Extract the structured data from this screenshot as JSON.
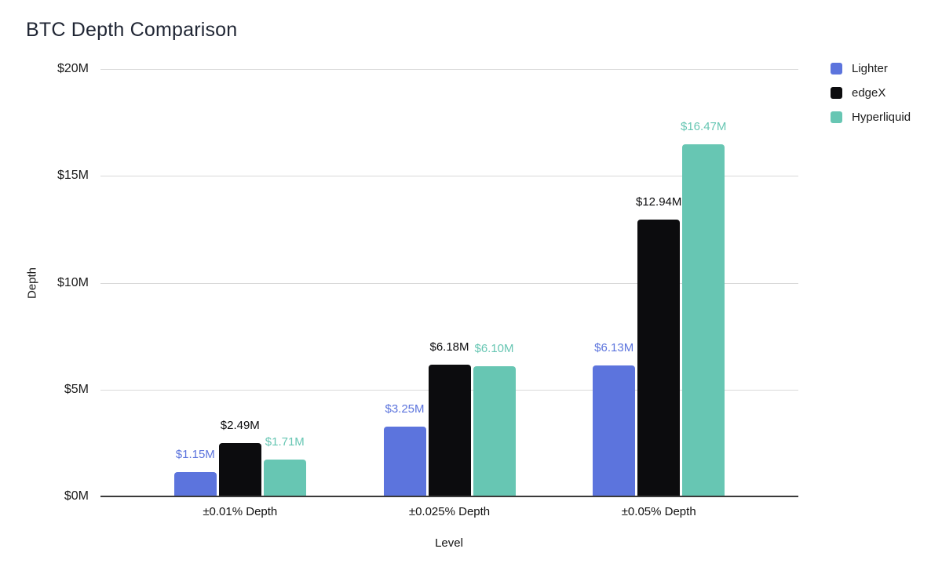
{
  "title": "BTC Depth Comparison",
  "legend": {
    "position": "right",
    "items": [
      {
        "label": "Lighter",
        "color": "#5c74dd"
      },
      {
        "label": "edgeX",
        "color": "#0c0c0e"
      },
      {
        "label": "Hyperliquid",
        "color": "#67c6b3"
      }
    ]
  },
  "chart_data": {
    "type": "bar",
    "title": "BTC Depth Comparison",
    "xlabel": "Level",
    "ylabel": "Depth",
    "categories": [
      "±0.01% Depth",
      "±0.025% Depth",
      "±0.05% Depth"
    ],
    "series": [
      {
        "name": "Lighter",
        "color": "#5c74dd",
        "values": [
          1.15,
          3.25,
          6.13
        ],
        "labels": [
          "$1.15M",
          "$3.25M",
          "$6.13M"
        ]
      },
      {
        "name": "edgeX",
        "color": "#0c0c0e",
        "values": [
          2.49,
          6.18,
          12.94
        ],
        "labels": [
          "$2.49M",
          "$6.18M",
          "$12.94M"
        ]
      },
      {
        "name": "Hyperliquid",
        "color": "#67c6b3",
        "values": [
          1.71,
          6.1,
          16.47
        ],
        "labels": [
          "$1.71M",
          "$6.10M",
          "$16.47M"
        ]
      }
    ],
    "ylim": [
      0,
      20
    ],
    "yticks": [
      {
        "value": 0,
        "label": "$0M"
      },
      {
        "value": 5,
        "label": "$5M"
      },
      {
        "value": 10,
        "label": "$10M"
      },
      {
        "value": 15,
        "label": "$15M"
      },
      {
        "value": 20,
        "label": "$20M"
      }
    ],
    "grid": true,
    "legend_position": "right"
  }
}
